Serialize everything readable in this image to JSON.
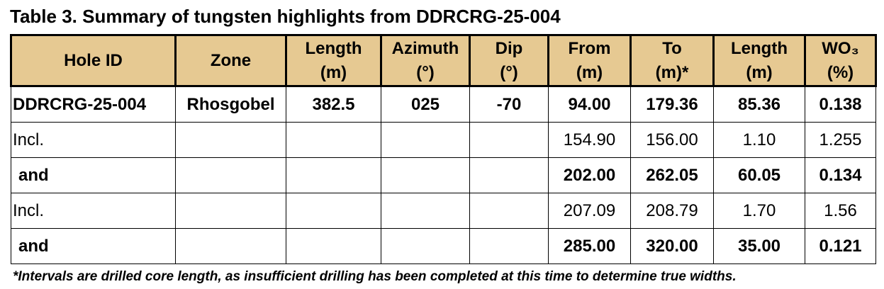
{
  "title": "Table 3. Summary of tungsten highlights from DDRCRG-25-004",
  "table": {
    "header": [
      [
        "Hole ID"
      ],
      [
        "Zone"
      ],
      [
        "Length",
        "(m)"
      ],
      [
        "Azimuth",
        "(°)"
      ],
      [
        "Dip",
        "(°)"
      ],
      [
        "From",
        "(m)"
      ],
      [
        "To",
        "(m)*"
      ],
      [
        "Length",
        "(m)"
      ],
      [
        "WO₃",
        "(%)"
      ]
    ],
    "rows": [
      {
        "bold": true,
        "cells": [
          "DDRCRG-25-004",
          "Rhosgobel",
          "382.5",
          "025",
          "-70",
          "94.00",
          "179.36",
          "85.36",
          "0.138"
        ]
      },
      {
        "bold": false,
        "cells": [
          "Incl.",
          null,
          null,
          null,
          null,
          "154.90",
          "156.00",
          "1.10",
          "1.255"
        ]
      },
      {
        "bold": true,
        "cells": [
          "and",
          null,
          null,
          null,
          null,
          "202.00",
          "262.05",
          "60.05",
          "0.134"
        ]
      },
      {
        "bold": false,
        "cells": [
          "Incl.",
          null,
          null,
          null,
          null,
          "207.09",
          "208.79",
          "1.70",
          "1.56"
        ]
      },
      {
        "bold": true,
        "cells": [
          "and",
          null,
          null,
          null,
          null,
          "285.00",
          "320.00",
          "35.00",
          "0.121"
        ]
      }
    ]
  },
  "footnote": "*Intervals are drilled core length, as insufficient drilling has been completed at this time to determine true widths."
}
